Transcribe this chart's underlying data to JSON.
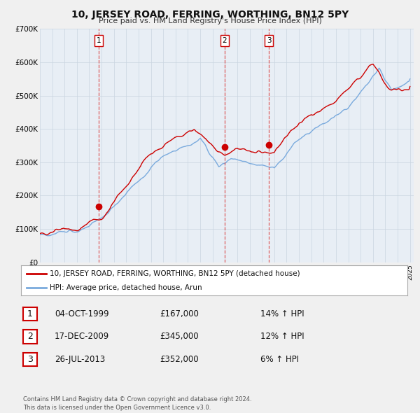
{
  "title": "10, JERSEY ROAD, FERRING, WORTHING, BN12 5PY",
  "subtitle": "Price paid vs. HM Land Registry's House Price Index (HPI)",
  "fig_bg_color": "#f0f0f0",
  "plot_bg_color": "#e8eef5",
  "ylabel": "",
  "ylim": [
    0,
    700000
  ],
  "yticks": [
    0,
    100000,
    200000,
    300000,
    400000,
    500000,
    600000,
    700000
  ],
  "ytick_labels": [
    "£0",
    "£100K",
    "£200K",
    "£300K",
    "£400K",
    "£500K",
    "£600K",
    "£700K"
  ],
  "legend_label_red": "10, JERSEY ROAD, FERRING, WORTHING, BN12 5PY (detached house)",
  "legend_label_blue": "HPI: Average price, detached house, Arun",
  "footer": "Contains HM Land Registry data © Crown copyright and database right 2024.\nThis data is licensed under the Open Government Licence v3.0.",
  "transactions": [
    {
      "num": 1,
      "date": "04-OCT-1999",
      "price": "£167,000",
      "hpi": "14% ↑ HPI",
      "year": 1999.75
    },
    {
      "num": 2,
      "date": "17-DEC-2009",
      "price": "£345,000",
      "hpi": "12% ↑ HPI",
      "year": 2009.96
    },
    {
      "num": 3,
      "date": "26-JUL-2013",
      "price": "£352,000",
      "hpi": "6% ↑ HPI",
      "year": 2013.56
    }
  ],
  "transaction_prices": [
    167000,
    345000,
    352000
  ],
  "red_line_color": "#cc0000",
  "blue_line_color": "#7aaadd",
  "vline_color": "#dd4444",
  "start_year": 1995,
  "end_year": 2025
}
